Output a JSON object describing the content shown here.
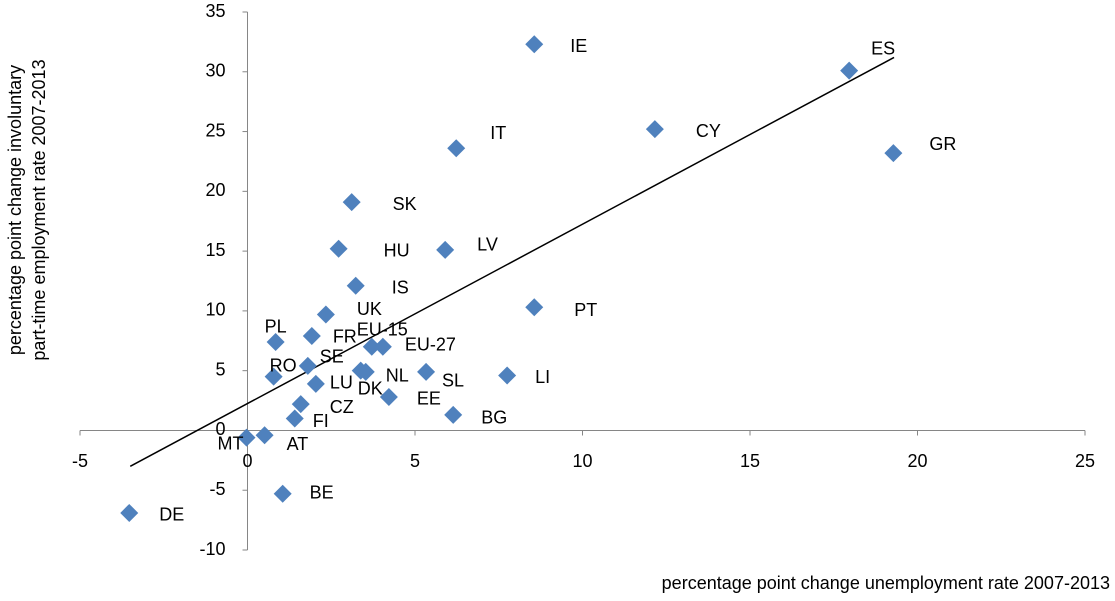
{
  "chart_data": {
    "type": "scatter",
    "x_label": "percentage point change unemployment rate 2007-2013",
    "y_label": [
      "percentage point change involuntary",
      "part-time employment rate 2007-2013"
    ],
    "labels": [
      "IE",
      "ES",
      "CY",
      "IT",
      "GR",
      "SK",
      "HU",
      "LV",
      "IS",
      "UK",
      "PT",
      "PL",
      "FR",
      "EU-15",
      "EU-27",
      "SE",
      "RO",
      "DK",
      "NL",
      "LU",
      "SL",
      "EE",
      "LI",
      "CZ",
      "FI",
      "BG",
      "AT",
      "MT",
      "BE",
      "DE"
    ],
    "x": [
      8.56,
      17.96,
      12.16,
      6.23,
      19.28,
      3.11,
      2.72,
      5.9,
      3.23,
      2.34,
      8.56,
      0.84,
      1.92,
      3.71,
      4.04,
      1.8,
      0.78,
      3.38,
      3.53,
      2.04,
      5.33,
      4.22,
      7.75,
      1.59,
      1.41,
      6.14,
      0.51,
      -0.03,
      1.05,
      -3.53
    ],
    "y": [
      32.3,
      30.1,
      25.2,
      23.6,
      23.2,
      19.1,
      15.2,
      15.1,
      12.1,
      9.7,
      10.3,
      7.4,
      7.9,
      7.0,
      7.0,
      5.4,
      4.5,
      5.0,
      4.9,
      3.9,
      4.9,
      2.8,
      4.6,
      2.2,
      1.0,
      1.3,
      -0.4,
      -0.6,
      -5.3,
      -6.9
    ],
    "color": "#4f81bd",
    "trendline": {
      "x": [
        -3.5,
        19.3
      ],
      "y": [
        -3.0,
        31.2
      ]
    },
    "xlim": [
      -5,
      25
    ],
    "xticks": [
      -5,
      0,
      5,
      10,
      15,
      20,
      25
    ],
    "ylim": [
      -10,
      35
    ],
    "yticks": [
      -10,
      -5,
      0,
      5,
      10,
      15,
      20,
      25,
      30,
      35
    ]
  }
}
